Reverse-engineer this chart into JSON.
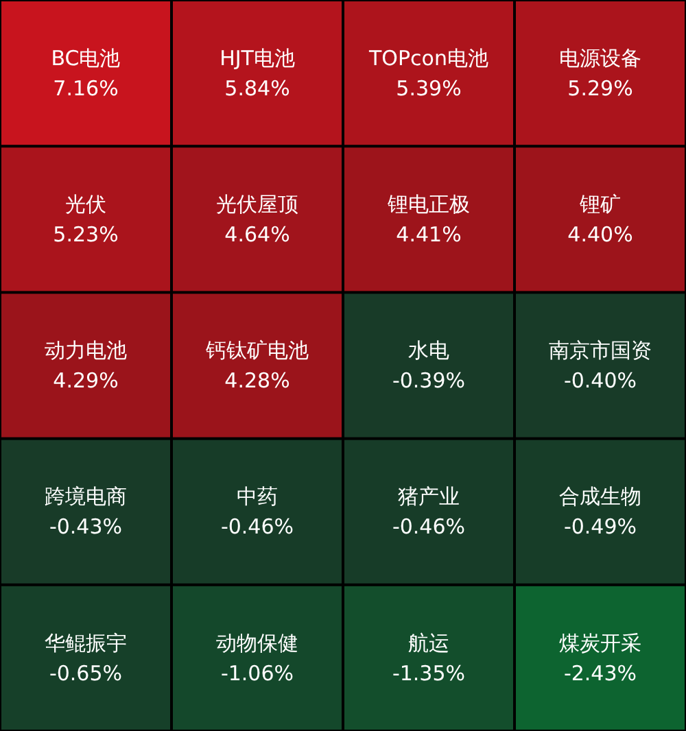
{
  "chart_data": {
    "type": "other",
    "categories": [
      "BC电池",
      "HJT电池",
      "TOPcon电池",
      "电源设备",
      "光伏",
      "光伏屋顶",
      "锂电正极",
      "锂矿",
      "动力电池",
      "钙钛矿电池",
      "水电",
      "南京市国资",
      "跨境电商",
      "中药",
      "猪产业",
      "合成生物",
      "华鲲振宇",
      "动物保健",
      "航运",
      "煤炭开采"
    ],
    "values": [
      7.16,
      5.84,
      5.39,
      5.29,
      5.23,
      4.64,
      4.41,
      4.4,
      4.29,
      4.28,
      -0.39,
      -0.4,
      -0.43,
      -0.46,
      -0.46,
      -0.49,
      -0.65,
      -1.06,
      -1.35,
      -2.43
    ],
    "value_labels": [
      "7.16%",
      "5.84%",
      "5.39%",
      "5.29%",
      "5.23%",
      "4.64%",
      "4.41%",
      "4.40%",
      "4.29%",
      "4.28%",
      "-0.39%",
      "-0.40%",
      "-0.43%",
      "-0.46%",
      "-0.46%",
      "-0.49%",
      "-0.65%",
      "-1.06%",
      "-1.35%",
      "-2.43%"
    ]
  }
}
